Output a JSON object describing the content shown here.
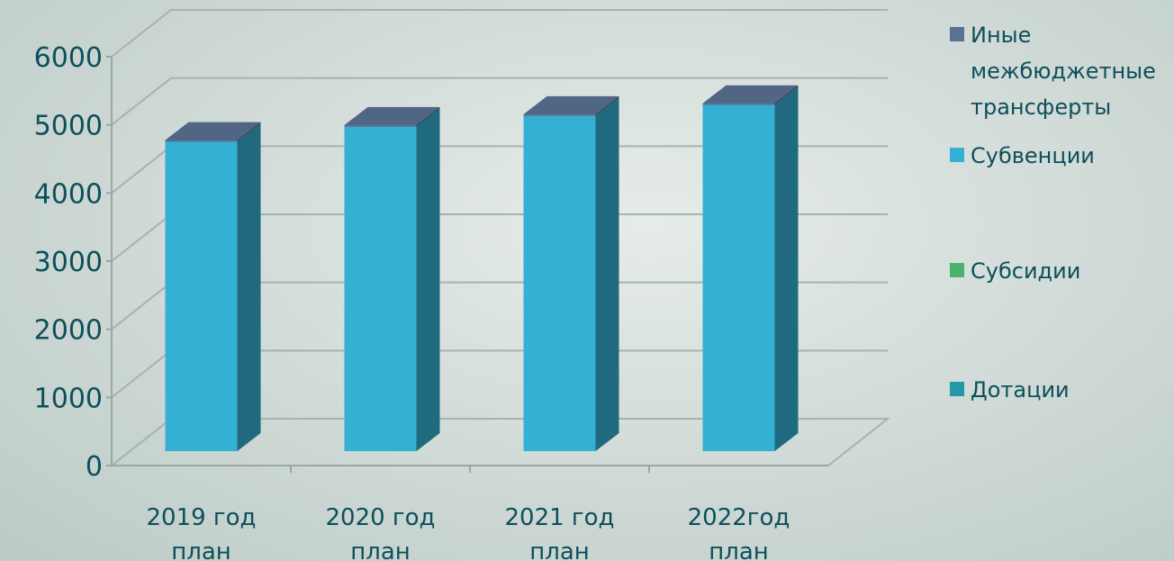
{
  "chart_data": {
    "type": "bar",
    "stacked": true,
    "three_d": true,
    "categories": [
      [
        "2019 год",
        "план"
      ],
      [
        "2020 год",
        "план"
      ],
      [
        "2021 год",
        "план"
      ],
      [
        "2022год",
        "план"
      ]
    ],
    "series": [
      {
        "name": "Дотации",
        "values": [
          0,
          0,
          0,
          0
        ],
        "color": "#2199a8"
      },
      {
        "name": "Субсидии",
        "values": [
          0,
          0,
          0,
          0
        ],
        "color": "#4ab36a"
      },
      {
        "name": "Субвенции",
        "values": [
          4540,
          4760,
          4920,
          5080
        ],
        "color": "#35b0d5"
      },
      {
        "name": "Иные межбюджетные трансферты",
        "values": [
          25,
          25,
          25,
          25
        ],
        "color": "#5a7194"
      }
    ],
    "ylim": [
      0,
      6000
    ],
    "yticks": [
      0,
      1000,
      2000,
      3000,
      4000,
      5000,
      6000
    ],
    "grid": true,
    "legend_position": "right"
  }
}
